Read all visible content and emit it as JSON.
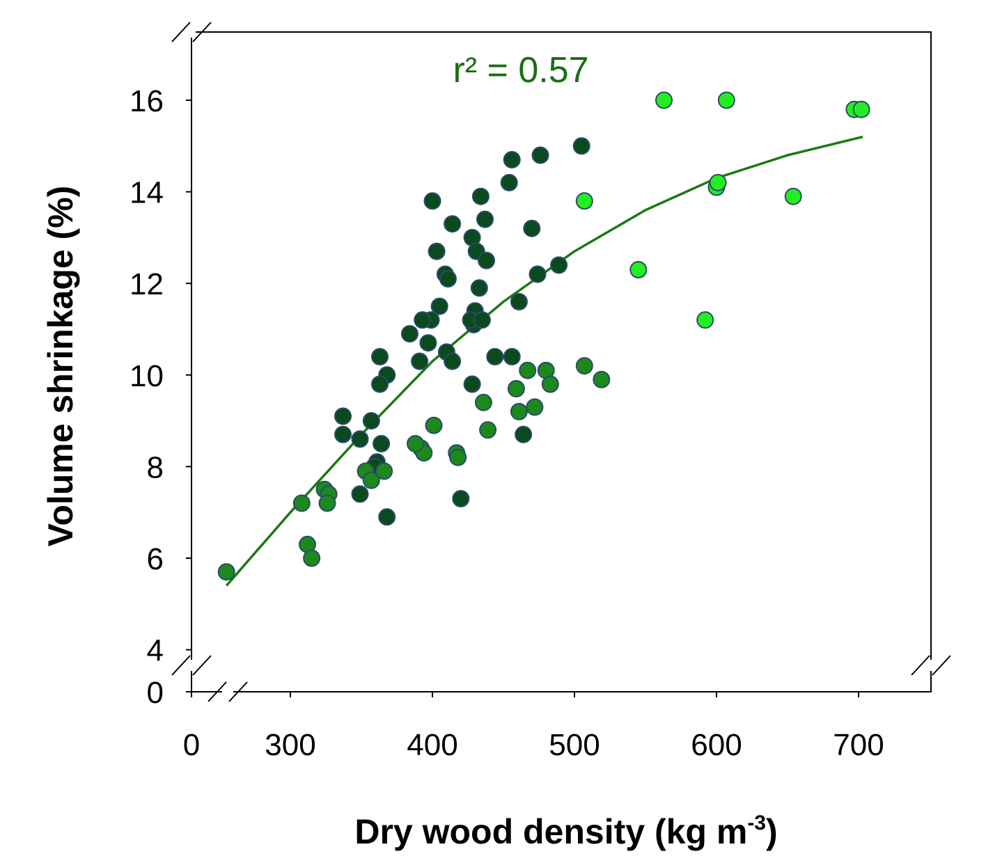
{
  "chart_data": {
    "type": "scatter",
    "xlabel": "Dry wood density (kg m",
    "xlabel_sup": "-3",
    "xlabel_end": ")",
    "ylabel": "Volume shrinkage (%)",
    "annotation": "r² = 0.57",
    "xlim": [
      0,
      750
    ],
    "ylim": [
      0,
      17.5
    ],
    "x_ticks": [
      0,
      300,
      400,
      500,
      600,
      700
    ],
    "y_ticks": [
      0,
      4,
      6,
      8,
      10,
      12,
      14,
      16
    ],
    "grid": false,
    "axis_breaks": true,
    "colors": {
      "dark": "#0b4a1c",
      "medium": "#1b8a1b",
      "light": "#22ee22",
      "edge": "#2a4b6a",
      "fit": "#1a7a12"
    },
    "fit_curve": {
      "x": [
        255,
        300,
        350,
        400,
        450,
        500,
        550,
        600,
        650,
        703
      ],
      "y": [
        5.4,
        7.0,
        8.7,
        10.3,
        11.6,
        12.7,
        13.6,
        14.3,
        14.8,
        15.2
      ]
    },
    "series": [
      {
        "color": "dark",
        "x": [
          400,
          403,
          409,
          411,
          414,
          428,
          431,
          433,
          434,
          437,
          438,
          430,
          429,
          427,
          435,
          454,
          456,
          470,
          476,
          474,
          489,
          505,
          461,
          456,
          444,
          405,
          399,
          397,
          391,
          393,
          384,
          410,
          414,
          363,
          368,
          363,
          337,
          337,
          349,
          357,
          361,
          364,
          349,
          359,
          368,
          420,
          464,
          428
        ],
        "y": [
          13.8,
          12.7,
          12.2,
          12.1,
          13.3,
          13.0,
          12.7,
          11.9,
          13.9,
          13.4,
          12.5,
          11.4,
          11.1,
          11.2,
          11.2,
          14.2,
          14.7,
          13.2,
          14.8,
          12.2,
          12.4,
          15.0,
          11.6,
          10.4,
          10.4,
          11.5,
          11.2,
          10.7,
          10.3,
          11.2,
          10.9,
          10.5,
          10.3,
          10.4,
          10.0,
          9.8,
          9.1,
          8.7,
          8.6,
          9.0,
          8.1,
          8.5,
          7.4,
          8.0,
          6.9,
          7.3,
          8.7,
          9.8
        ]
      },
      {
        "color": "medium",
        "x": [
          255,
          312,
          324,
          327,
          326,
          308,
          315,
          353,
          357,
          366,
          392,
          394,
          401,
          388,
          417,
          418,
          436,
          439,
          459,
          461,
          467,
          472,
          480,
          483,
          519,
          507
        ],
        "y": [
          5.7,
          6.3,
          7.5,
          7.4,
          7.2,
          7.2,
          6.0,
          7.9,
          7.7,
          7.9,
          8.4,
          8.3,
          8.9,
          8.5,
          8.3,
          8.2,
          9.4,
          8.8,
          9.7,
          9.2,
          10.1,
          9.3,
          10.1,
          9.8,
          9.9,
          10.2
        ]
      },
      {
        "color": "light",
        "x": [
          507,
          545,
          563,
          592,
          600,
          601,
          607,
          654,
          697,
          702
        ],
        "y": [
          13.8,
          12.3,
          16.0,
          11.2,
          14.1,
          14.2,
          16.0,
          13.9,
          15.8,
          15.8
        ]
      }
    ]
  }
}
